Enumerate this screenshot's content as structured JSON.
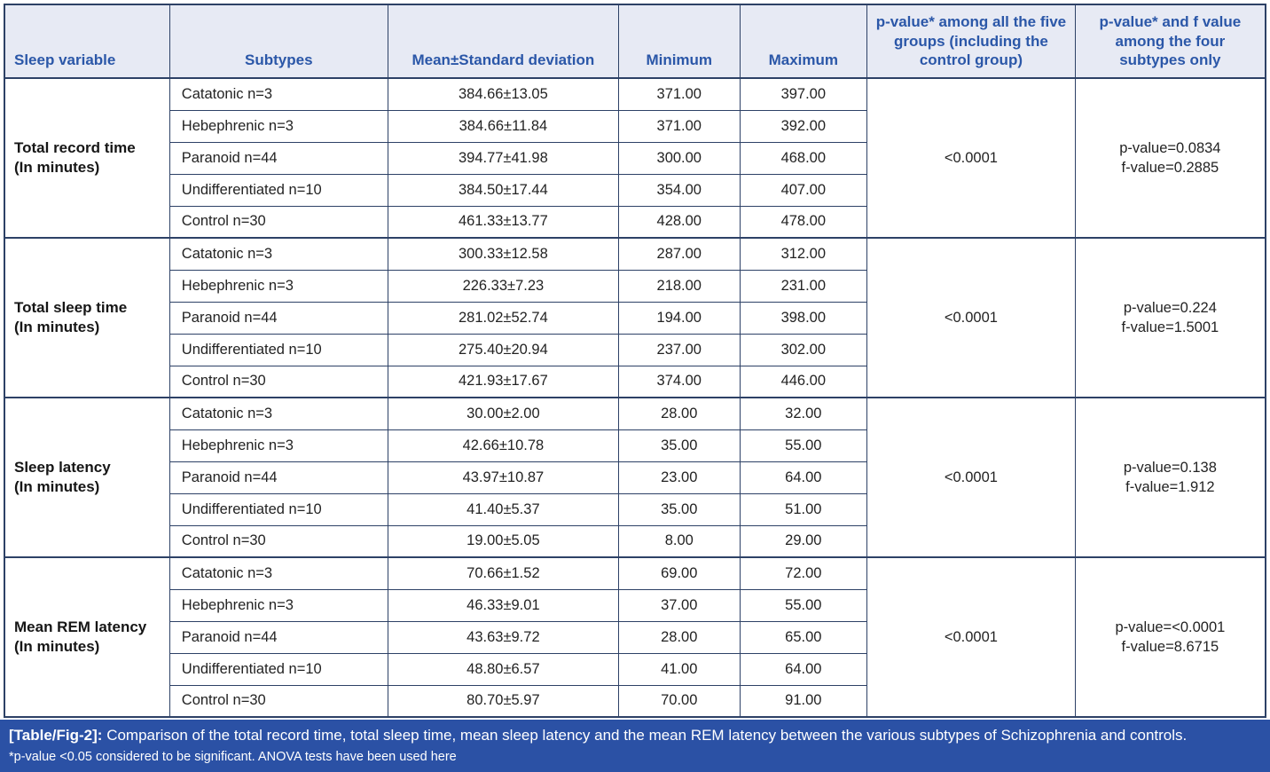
{
  "colors": {
    "header_bg": "#e7eaf4",
    "header_text_blue": "#2b57a8",
    "border_navy": "#2d4166",
    "footer_bg": "#2b51a5",
    "footer_text": "#ffffff",
    "body_text": "#232323"
  },
  "header": {
    "columns": [
      "Sleep variable",
      "Subtypes",
      "Mean±Standard deviation",
      "Minimum",
      "Maximum",
      "p-value* among all the five groups (including the control group)",
      "p-value* and f value among the four subtypes only"
    ]
  },
  "table": {
    "groups": [
      {
        "variable": "Total record time",
        "unit": "(In minutes)",
        "p_all": "<0.0001",
        "p_sub": "p-value=0.0834",
        "f_sub": "f-value=0.2885",
        "rows": [
          {
            "subtype": "Catatonic n=3",
            "mean_sd": "384.66±13.05",
            "min": "371.00",
            "max": "397.00"
          },
          {
            "subtype": "Hebephrenic n=3",
            "mean_sd": "384.66±11.84",
            "min": "371.00",
            "max": "392.00"
          },
          {
            "subtype": "Paranoid n=44",
            "mean_sd": "394.77±41.98",
            "min": "300.00",
            "max": "468.00"
          },
          {
            "subtype": "Undifferentiated n=10",
            "mean_sd": "384.50±17.44",
            "min": "354.00",
            "max": "407.00"
          },
          {
            "subtype": "Control n=30",
            "mean_sd": "461.33±13.77",
            "min": "428.00",
            "max": "478.00"
          }
        ]
      },
      {
        "variable": "Total sleep time",
        "unit": "(In minutes)",
        "p_all": "<0.0001",
        "p_sub": "p-value=0.224",
        "f_sub": "f-value=1.5001",
        "rows": [
          {
            "subtype": "Catatonic n=3",
            "mean_sd": "300.33±12.58",
            "min": "287.00",
            "max": "312.00"
          },
          {
            "subtype": "Hebephrenic n=3",
            "mean_sd": "226.33±7.23",
            "min": "218.00",
            "max": "231.00"
          },
          {
            "subtype": "Paranoid n=44",
            "mean_sd": "281.02±52.74",
            "min": "194.00",
            "max": "398.00"
          },
          {
            "subtype": "Undifferentiated n=10",
            "mean_sd": "275.40±20.94",
            "min": "237.00",
            "max": "302.00"
          },
          {
            "subtype": "Control n=30",
            "mean_sd": "421.93±17.67",
            "min": "374.00",
            "max": "446.00"
          }
        ]
      },
      {
        "variable": "Sleep latency",
        "unit": "(In minutes)",
        "p_all": "<0.0001",
        "p_sub": "p-value=0.138",
        "f_sub": "f-value=1.912",
        "rows": [
          {
            "subtype": "Catatonic n=3",
            "mean_sd": "30.00±2.00",
            "min": "28.00",
            "max": "32.00"
          },
          {
            "subtype": "Hebephrenic n=3",
            "mean_sd": "42.66±10.78",
            "min": "35.00",
            "max": "55.00"
          },
          {
            "subtype": "Paranoid n=44",
            "mean_sd": "43.97±10.87",
            "min": "23.00",
            "max": "64.00"
          },
          {
            "subtype": "Undifferentiated n=10",
            "mean_sd": "41.40±5.37",
            "min": "35.00",
            "max": "51.00"
          },
          {
            "subtype": "Control n=30",
            "mean_sd": "19.00±5.05",
            "min": "8.00",
            "max": "29.00"
          }
        ]
      },
      {
        "variable": "Mean REM latency",
        "unit": "(In minutes)",
        "p_all": "<0.0001",
        "p_sub": "p-value=<0.0001",
        "f_sub": "f-value=8.6715",
        "rows": [
          {
            "subtype": "Catatonic n=3",
            "mean_sd": "70.66±1.52",
            "min": "69.00",
            "max": "72.00"
          },
          {
            "subtype": "Hebephrenic n=3",
            "mean_sd": "46.33±9.01",
            "min": "37.00",
            "max": "55.00"
          },
          {
            "subtype": "Paranoid n=44",
            "mean_sd": "43.63±9.72",
            "min": "28.00",
            "max": "65.00"
          },
          {
            "subtype": "Undifferentiated n=10",
            "mean_sd": "48.80±6.57",
            "min": "41.00",
            "max": "64.00"
          },
          {
            "subtype": "Control n=30",
            "mean_sd": "80.70±5.97",
            "min": "70.00",
            "max": "91.00"
          }
        ]
      }
    ]
  },
  "footer": {
    "tag": "[Table/Fig-2]:",
    "caption": "Comparison of the total record time, total sleep time, mean sleep latency and the mean REM latency between the various subtypes of Schizophrenia and controls.",
    "note": "*p-value <0.05 considered to be significant. ANOVA tests have been used here"
  }
}
